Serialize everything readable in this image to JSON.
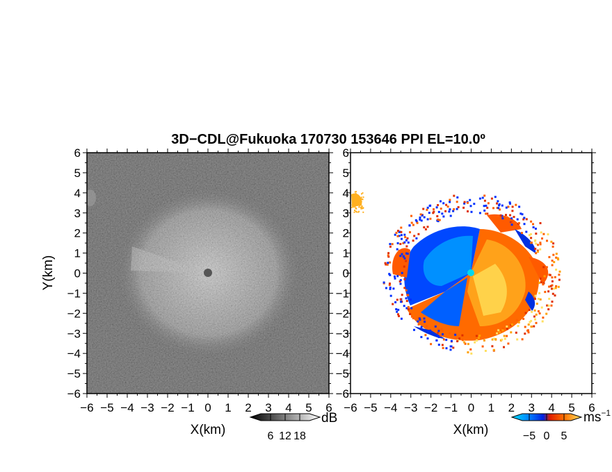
{
  "title": "3D−CDL@Fukuoka 170730 153646 PPI EL=10.0º",
  "chart_data": [
    {
      "type": "heatmap",
      "panel": "left",
      "quantity": "backscatter intensity",
      "xlabel": "X(km)",
      "ylabel": "Y(km)",
      "xlim": [
        -6,
        6
      ],
      "ylim": [
        -6,
        6
      ],
      "x_ticks": [
        "−6",
        "−5",
        "−4",
        "−3",
        "−2",
        "−1",
        "0",
        "1",
        "2",
        "3",
        "4",
        "5",
        "6"
      ],
      "y_ticks": [
        "6",
        "5",
        "4",
        "3",
        "2",
        "1",
        "0",
        "−1",
        "−2",
        "−3",
        "−4",
        "−5",
        "−6"
      ],
      "colormap": "grayscale",
      "colorbar": {
        "unit": "dB",
        "ticks": [
          "6",
          "12",
          "18"
        ],
        "range": [
          2,
          22
        ]
      },
      "echo_radius_km": 4.2,
      "radar_center": [
        0,
        0
      ]
    },
    {
      "type": "heatmap",
      "panel": "right",
      "quantity": "Doppler velocity",
      "xlabel": "X(km)",
      "xlim": [
        -6,
        6
      ],
      "ylim": [
        -6,
        6
      ],
      "x_ticks": [
        "−6",
        "−5",
        "−4",
        "−3",
        "−2",
        "−1",
        "0",
        "1",
        "2",
        "3",
        "4",
        "5",
        "6"
      ],
      "y_ticks": [
        "6",
        "5",
        "4",
        "3",
        "2",
        "1",
        "0",
        "−1",
        "−2",
        "−3",
        "−4",
        "−5",
        "−6"
      ],
      "colormap": [
        "#00e0ff",
        "#0090ff",
        "#0030ff",
        "#e03000",
        "#ff6000",
        "#ffa000",
        "#ffe060"
      ],
      "colorbar": {
        "unit": "ms",
        "unit_exp": "−1",
        "ticks": [
          "−5",
          "0",
          "5"
        ],
        "range": [
          -7,
          7
        ]
      },
      "echo_radius_km": 4.0,
      "pattern": "negative (blue) toward upper-left / west, positive (orange-yellow) toward lower-right / east"
    }
  ]
}
